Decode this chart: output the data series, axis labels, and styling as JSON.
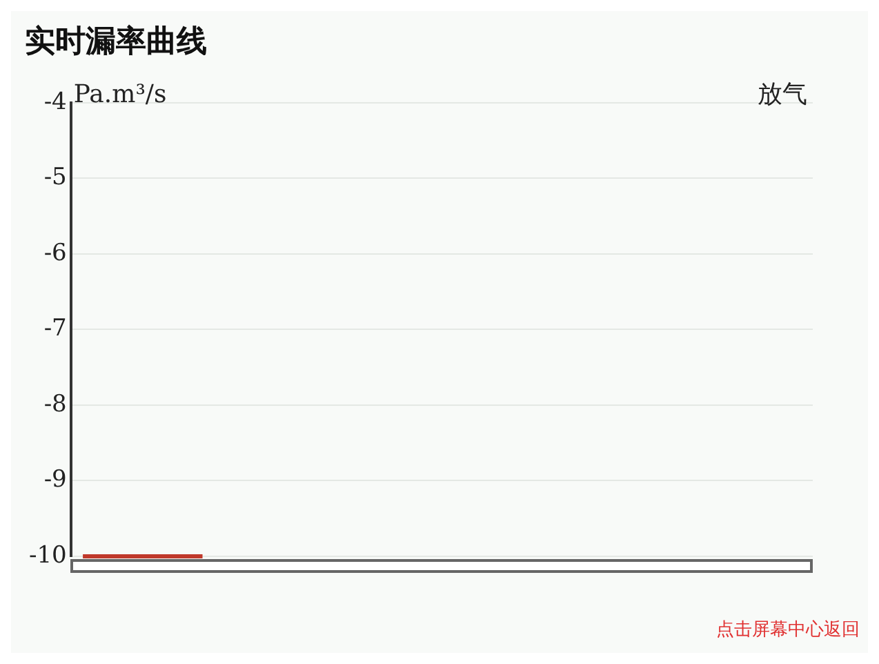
{
  "chart_data": {
    "type": "line",
    "title": "实时漏率曲线",
    "ylabel": "Pa.m³/s",
    "annotations": [
      "放气",
      "点击屏幕中心返回"
    ],
    "categories": [
      null,
      null,
      null,
      null,
      null,
      null,
      null,
      null,
      null,
      null,
      null,
      null,
      null,
      null,
      null,
      null,
      null,
      null,
      null,
      null,
      null,
      null,
      null,
      null,
      null,
      null,
      null,
      null,
      null,
      null,
      null
    ],
    "series": [
      {
        "color": "#c0392b",
        "values": [
          -10,
          -10,
          -10,
          -10,
          -10,
          -10,
          null,
          null,
          null,
          null,
          null,
          null,
          null,
          null,
          null,
          null,
          null,
          null,
          null,
          null,
          null,
          null,
          null,
          null,
          null,
          null,
          null,
          null,
          null,
          null,
          null
        ]
      }
    ],
    "ylim": [
      -10,
      -4
    ],
    "yticks": [
      -4,
      -5,
      -6,
      -7,
      -8,
      -9,
      -10
    ],
    "grid": "y",
    "tick_labels": "y",
    "legend": false,
    "marker": "none",
    "line_style": "solid"
  }
}
